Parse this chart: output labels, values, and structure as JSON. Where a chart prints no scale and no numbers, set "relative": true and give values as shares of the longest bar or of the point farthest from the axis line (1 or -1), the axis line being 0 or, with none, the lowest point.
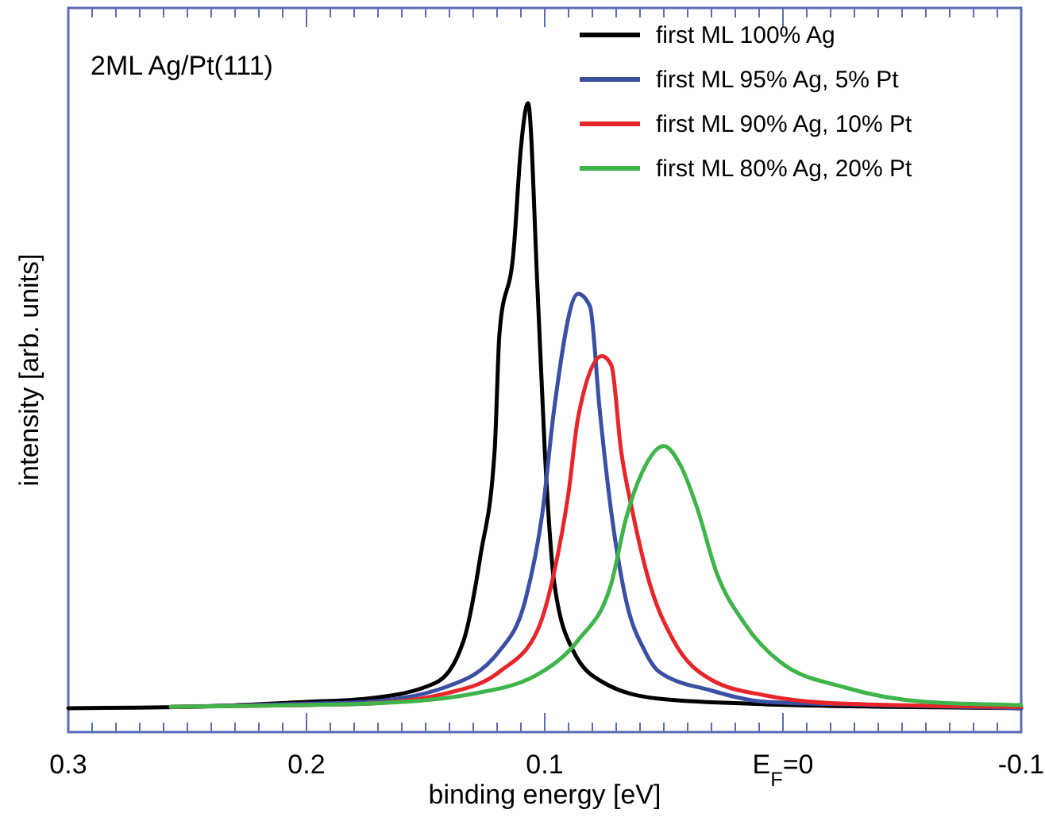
{
  "chart_data": {
    "type": "line",
    "relative": true,
    "xlabel": "binding energy [eV]",
    "ylabel": "intensity [arb. units]",
    "annotations": [
      "2ML Ag/Pt(111)"
    ],
    "xlim": [
      0.3,
      -0.1
    ],
    "xticks": [
      0.3,
      {
        "value": 0.29,
        "label": null
      },
      {
        "value": 0.28,
        "label": null
      },
      {
        "value": 0.27,
        "label": null
      },
      {
        "value": 0.26,
        "label": null
      },
      {
        "value": 0.25,
        "label": null
      },
      {
        "value": 0.24,
        "label": null
      },
      {
        "value": 0.23,
        "label": null
      },
      {
        "value": 0.22,
        "label": null
      },
      {
        "value": 0.21,
        "label": null
      },
      0.2,
      {
        "value": 0.19,
        "label": null
      },
      {
        "value": 0.18,
        "label": null
      },
      {
        "value": 0.17,
        "label": null
      },
      {
        "value": 0.16,
        "label": null
      },
      {
        "value": 0.15,
        "label": null
      },
      {
        "value": 0.14,
        "label": null
      },
      {
        "value": 0.13,
        "label": null
      },
      {
        "value": 0.12,
        "label": null
      },
      {
        "value": 0.11,
        "label": null
      },
      0.1,
      {
        "value": 0.09,
        "label": null
      },
      {
        "value": 0.08,
        "label": null
      },
      {
        "value": 0.07,
        "label": null
      },
      {
        "value": 0.06,
        "label": null
      },
      {
        "value": 0.05,
        "label": null
      },
      {
        "value": 0.04,
        "label": null
      },
      {
        "value": 0.03,
        "label": null
      },
      {
        "value": 0.02,
        "label": null
      },
      {
        "value": 0.01,
        "label": null
      },
      {
        "value": 0,
        "label": "E$_{F}$=0"
      },
      {
        "value": -0.01,
        "label": null
      },
      {
        "value": -0.02,
        "label": null
      },
      {
        "value": -0.03,
        "label": null
      },
      {
        "value": -0.04,
        "label": null
      },
      {
        "value": -0.05,
        "label": null
      },
      {
        "value": -0.06,
        "label": null
      },
      {
        "value": -0.07,
        "label": null
      },
      {
        "value": -0.08,
        "label": null
      },
      {
        "value": -0.09,
        "label": null
      },
      -0.1
    ],
    "grid": false,
    "legend": "top right",
    "marker": "none",
    "line_style": "solid",
    "series": [
      {
        "name": "first ML 100% Ag",
        "color": "#000000",
        "x": [
          0.3,
          0.25,
          0.2,
          0.175,
          0.146,
          0.134,
          0.127,
          0.121,
          0.119,
          0.113,
          0.11,
          0.107,
          0.103,
          0.1,
          0.096,
          0.088,
          0.075,
          0.052,
          0.014,
          -0.046,
          -0.1
        ],
        "values": [
          0.038,
          0.04,
          0.048,
          0.053,
          0.078,
          0.146,
          0.28,
          0.449,
          0.634,
          0.768,
          0.929,
          1,
          0.702,
          0.449,
          0.237,
          0.129,
          0.078,
          0.053,
          0.045,
          0.04,
          0.038
        ]
      },
      {
        "name": "first ML 95% Ag, 5% Pt",
        "color": "#3b4fa3",
        "x": [
          0.257,
          0.2,
          0.175,
          0.142,
          0.119,
          0.108,
          0.101,
          0.096,
          0.086,
          0.081,
          0.077,
          0.072,
          0.066,
          0.058,
          0.052,
          0.03,
          0.007,
          -0.038,
          -0.1
        ],
        "values": [
          0.04,
          0.045,
          0.048,
          0.071,
          0.129,
          0.212,
          0.348,
          0.515,
          0.697,
          0.677,
          0.515,
          0.348,
          0.212,
          0.129,
          0.096,
          0.066,
          0.048,
          0.043,
          0.038
        ]
      },
      {
        "name": "first ML 90% Ag, 10% Pt",
        "color": "#e8262a",
        "x": [
          0.257,
          0.2,
          0.175,
          0.142,
          0.119,
          0.103,
          0.096,
          0.09,
          0.086,
          0.076,
          0.072,
          0.068,
          0.063,
          0.056,
          0.046,
          0.03,
          0.007,
          -0.026,
          -0.1
        ],
        "values": [
          0.04,
          0.043,
          0.045,
          0.061,
          0.096,
          0.162,
          0.255,
          0.381,
          0.5,
          0.598,
          0.583,
          0.449,
          0.348,
          0.237,
          0.146,
          0.083,
          0.058,
          0.045,
          0.04
        ]
      },
      {
        "name": "first ML 80% Ag, 20% Pt",
        "color": "#3fb44a",
        "x": [
          0.257,
          0.2,
          0.175,
          0.13,
          0.101,
          0.086,
          0.072,
          0.066,
          0.059,
          0.05,
          0.043,
          0.036,
          0.028,
          0.016,
          0.001,
          -0.026,
          -0.06,
          -0.1
        ],
        "values": [
          0.04,
          0.043,
          0.045,
          0.061,
          0.096,
          0.146,
          0.237,
          0.338,
          0.414,
          0.455,
          0.424,
          0.356,
          0.255,
          0.172,
          0.111,
          0.071,
          0.048,
          0.043
        ]
      }
    ]
  }
}
